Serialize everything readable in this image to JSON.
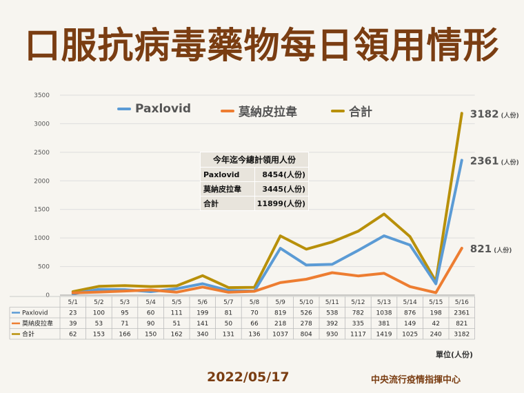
{
  "title": "口服抗病毒藥物每日領用情形",
  "footer": {
    "date": "2022/05/17",
    "org": "中央流行疫情指揮中心"
  },
  "unit_note": "單位(人份)",
  "summary": {
    "heading": "今年迄今總計領用人份",
    "rows": [
      {
        "label": "Paxlovid",
        "value": "8454(人份)"
      },
      {
        "label": "莫納皮拉韋",
        "value": "3445(人份)"
      },
      {
        "label": "合計",
        "value": "11899(人份)"
      }
    ]
  },
  "callouts": {
    "total": {
      "value": "3182",
      "unit": "(人份)"
    },
    "paxlovid": {
      "value": "2361",
      "unit": "(人份)"
    },
    "molnupiravir": {
      "value": "821",
      "unit": "(人份)"
    }
  },
  "chart_data": {
    "type": "line",
    "categories": [
      "5/1",
      "5/2",
      "5/3",
      "5/4",
      "5/5",
      "5/6",
      "5/7",
      "5/8",
      "5/9",
      "5/10",
      "5/11",
      "5/12",
      "5/13",
      "5/14",
      "5/15",
      "5/16"
    ],
    "ylim": [
      0,
      3500
    ],
    "yticks": [
      "0",
      "500",
      "1000",
      "1500",
      "2000",
      "2500",
      "3000",
      "3500"
    ],
    "series": [
      {
        "name": "Paxlovid",
        "color": "#5b9bd5",
        "values": [
          23,
          100,
          95,
          60,
          111,
          199,
          81,
          70,
          819,
          526,
          538,
          782,
          1038,
          876,
          198,
          2361
        ]
      },
      {
        "name": "莫納皮拉韋",
        "color": "#ed7d31",
        "values": [
          39,
          53,
          71,
          90,
          51,
          141,
          50,
          66,
          218,
          278,
          392,
          335,
          381,
          149,
          42,
          821
        ]
      },
      {
        "name": "合計",
        "color": "#b8900a",
        "values": [
          62,
          153,
          166,
          150,
          162,
          340,
          131,
          136,
          1037,
          804,
          930,
          1117,
          1419,
          1025,
          240,
          3182
        ]
      }
    ],
    "legend_position": "top-left"
  }
}
